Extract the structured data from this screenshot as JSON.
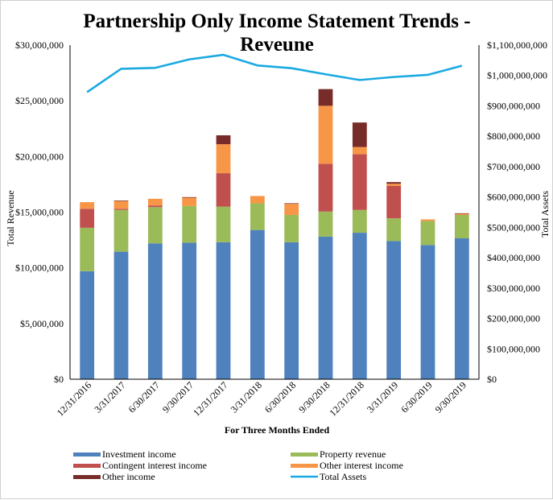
{
  "chart_data": {
    "type": "bar",
    "title_line1": "Partnership Only Income Statement Trends -",
    "title_line2": "Reveune",
    "xlabel": "For Three Months  Ended",
    "ylabel": "Total Revenue",
    "y2label": "Total Assets",
    "ylim": [
      0,
      30000000
    ],
    "y2lim": [
      0,
      1100000000
    ],
    "yticks": [
      "$0",
      "$5,000,000",
      "$10,000,000",
      "$15,000,000",
      "$20,000,000",
      "$25,000,000",
      "$30,000,000"
    ],
    "y2ticks": [
      "$0",
      "$100,000,000",
      "$200,000,000",
      "$300,000,000",
      "$400,000,000",
      "$500,000,000",
      "$600,000,000",
      "$700,000,000",
      "$800,000,000",
      "$900,000,000",
      "$1,000,000,000",
      "$1,100,000,000"
    ],
    "categories": [
      "12/31/2016",
      "3/31/2017",
      "6/30/2017",
      "9/30/2017",
      "12/31/2017",
      "3/31/2018",
      "6/30/2018",
      "9/30/2018",
      "12/31/2018",
      "3/31/2019",
      "6/30/2019",
      "9/30/2019"
    ],
    "series": [
      {
        "name": "Investment income",
        "color": "#4F81BD",
        "values": [
          9700000,
          11450000,
          12200000,
          12250000,
          12300000,
          13400000,
          12300000,
          12800000,
          13150000,
          12400000,
          12050000,
          12650000
        ]
      },
      {
        "name": "Property revenue",
        "color": "#9BBB59",
        "values": [
          3900000,
          3750000,
          3250000,
          3300000,
          3200000,
          2400000,
          2450000,
          2250000,
          2050000,
          2050000,
          2150000,
          2100000
        ]
      },
      {
        "name": "Contingent interest income",
        "color": "#C0504D",
        "values": [
          1700000,
          100000,
          150000,
          0,
          3000000,
          0,
          0,
          4300000,
          5000000,
          2900000,
          0,
          0
        ]
      },
      {
        "name": "Other interest income",
        "color": "#F79646",
        "values": [
          600000,
          700000,
          600000,
          750000,
          2600000,
          650000,
          1000000,
          5200000,
          650000,
          200000,
          150000,
          100000
        ]
      },
      {
        "name": "Other income",
        "color": "#772C2A",
        "values": [
          0,
          50000,
          0,
          50000,
          800000,
          0,
          50000,
          1500000,
          2200000,
          150000,
          0,
          50000
        ]
      }
    ],
    "line_series": {
      "name": "Total Assets",
      "color": "#1AAAE1",
      "axis": "right",
      "values": [
        945000000,
        1022000000,
        1025000000,
        1053000000,
        1068000000,
        1033000000,
        1024000000,
        1004000000,
        985000000,
        995000000,
        1002000000,
        1032000000
      ]
    },
    "legend_position": "bottom",
    "grid": false
  }
}
